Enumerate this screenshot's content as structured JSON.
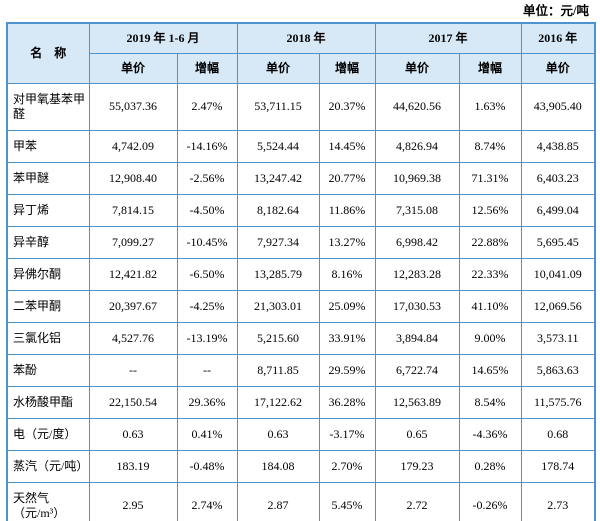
{
  "page": {
    "unit_label": "单位：元/吨"
  },
  "colors": {
    "border": "#4f93ce",
    "header_bg": "#d7e8f6",
    "text": "#000000",
    "page_bg": "#ffffff"
  },
  "table": {
    "header": {
      "name": "名　称",
      "y2019": "2019 年 1-6 月",
      "y2018": "2018 年",
      "y2017": "2017 年",
      "y2016": "2016 年",
      "price": "单价",
      "pct": "增幅"
    },
    "rows": [
      {
        "name": "对甲氧基苯甲醛",
        "values": [
          "55,037.36",
          "2.47%",
          "53,711.15",
          "20.37%",
          "44,620.56",
          "1.63%",
          "43,905.40"
        ]
      },
      {
        "name": "甲苯",
        "values": [
          "4,742.09",
          "-14.16%",
          "5,524.44",
          "14.45%",
          "4,826.94",
          "8.74%",
          "4,438.85"
        ]
      },
      {
        "name": "苯甲醚",
        "values": [
          "12,908.40",
          "-2.56%",
          "13,247.42",
          "20.77%",
          "10,969.38",
          "71.31%",
          "6,403.23"
        ]
      },
      {
        "name": "异丁烯",
        "values": [
          "7,814.15",
          "-4.50%",
          "8,182.64",
          "11.86%",
          "7,315.08",
          "12.56%",
          "6,499.04"
        ]
      },
      {
        "name": "异辛醇",
        "values": [
          "7,099.27",
          "-10.45%",
          "7,927.34",
          "13.27%",
          "6,998.42",
          "22.88%",
          "5,695.45"
        ]
      },
      {
        "name": "异佛尔酮",
        "values": [
          "12,421.82",
          "-6.50%",
          "13,285.79",
          "8.16%",
          "12,283.28",
          "22.33%",
          "10,041.09"
        ]
      },
      {
        "name": "二苯甲酮",
        "values": [
          "20,397.67",
          "-4.25%",
          "21,303.01",
          "25.09%",
          "17,030.53",
          "41.10%",
          "12,069.56"
        ]
      },
      {
        "name": "三氯化铝",
        "values": [
          "4,527.76",
          "-13.19%",
          "5,215.60",
          "33.91%",
          "3,894.84",
          "9.00%",
          "3,573.11"
        ]
      },
      {
        "name": "苯酚",
        "values": [
          "--",
          "--",
          "8,711.85",
          "29.59%",
          "6,722.74",
          "14.65%",
          "5,863.63"
        ]
      },
      {
        "name": "水杨酸甲酯",
        "values": [
          "22,150.54",
          "29.36%",
          "17,122.62",
          "36.28%",
          "12,563.89",
          "8.54%",
          "11,575.76"
        ]
      },
      {
        "name": "电（元/度）",
        "values": [
          "0.63",
          "0.41%",
          "0.63",
          "-3.17%",
          "0.65",
          "-4.36%",
          "0.68"
        ]
      },
      {
        "name": "蒸汽（元/吨）",
        "values": [
          "183.19",
          "-0.48%",
          "184.08",
          "2.70%",
          "179.23",
          "0.28%",
          "178.74"
        ]
      },
      {
        "name": "天然气（元/m³）",
        "values": [
          "2.95",
          "2.74%",
          "2.87",
          "5.45%",
          "2.72",
          "-0.26%",
          "2.73"
        ]
      }
    ]
  }
}
